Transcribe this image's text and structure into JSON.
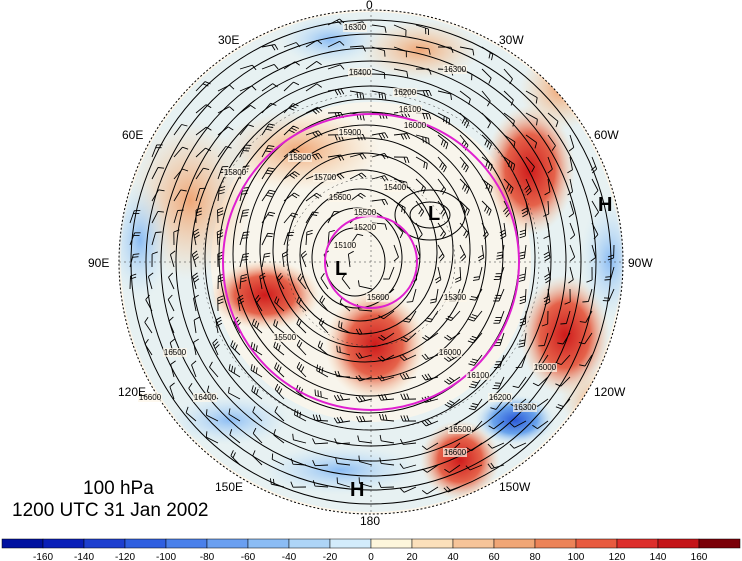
{
  "title": {
    "level": "100 hPa",
    "time": "1200 UTC 31 Jan 2002"
  },
  "longitude_labels": [
    {
      "name": "0",
      "text": "0"
    },
    {
      "name": "30W",
      "text": "30W"
    },
    {
      "name": "60W",
      "text": "60W"
    },
    {
      "name": "90W",
      "text": "90W"
    },
    {
      "name": "120W",
      "text": "120W"
    },
    {
      "name": "150W",
      "text": "150W"
    },
    {
      "name": "180",
      "text": "180"
    },
    {
      "name": "150E",
      "text": "150E"
    },
    {
      "name": "120E",
      "text": "120E"
    },
    {
      "name": "90E",
      "text": "90E"
    },
    {
      "name": "60E",
      "text": "60E"
    },
    {
      "name": "30E",
      "text": "30E"
    }
  ],
  "pressure_centers": [
    {
      "type": "L",
      "text": "L"
    },
    {
      "type": "L",
      "text": "L"
    },
    {
      "type": "H",
      "text": "H"
    },
    {
      "type": "H",
      "text": "H"
    }
  ],
  "contour_labels": [
    "16300",
    "16400",
    "16300",
    "16200",
    "16100",
    "16000",
    "15900",
    "15800",
    "15700",
    "15600",
    "15500",
    "15400",
    "15300",
    "15200",
    "15100",
    "16000",
    "16100",
    "16200",
    "16300",
    "16400",
    "16500",
    "16600",
    "16500",
    "16600",
    "15600",
    "15500",
    "15800",
    "16000"
  ],
  "colorbar": {
    "ticks": [
      "-160",
      "-140",
      "-120",
      "-100",
      "-80",
      "-60",
      "-40",
      "-20",
      "0",
      "20",
      "40",
      "60",
      "80",
      "100",
      "120",
      "140",
      "160"
    ],
    "colors": [
      "#0a1fb8",
      "#1e3fcf",
      "#2f5fe0",
      "#4a80ea",
      "#6a9ff0",
      "#8bbcf4",
      "#aed5f7",
      "#d3ecfb",
      "#fdf6dc",
      "#fbe0bb",
      "#f6c499",
      "#f0a676",
      "#ec8358",
      "#e85a3f",
      "#dd2e2b",
      "#c41418",
      "#9a0a10"
    ]
  },
  "map_colors": {
    "positive_strong": "#cf1b1b",
    "positive_mid": "#ea7d5a",
    "positive_weak": "#f6d2a8",
    "negative_strong": "#2a58d8",
    "negative_mid": "#6aa4ec",
    "negative_weak": "#c9e6f7",
    "contour": "#000000",
    "circle": "#e020d0"
  }
}
